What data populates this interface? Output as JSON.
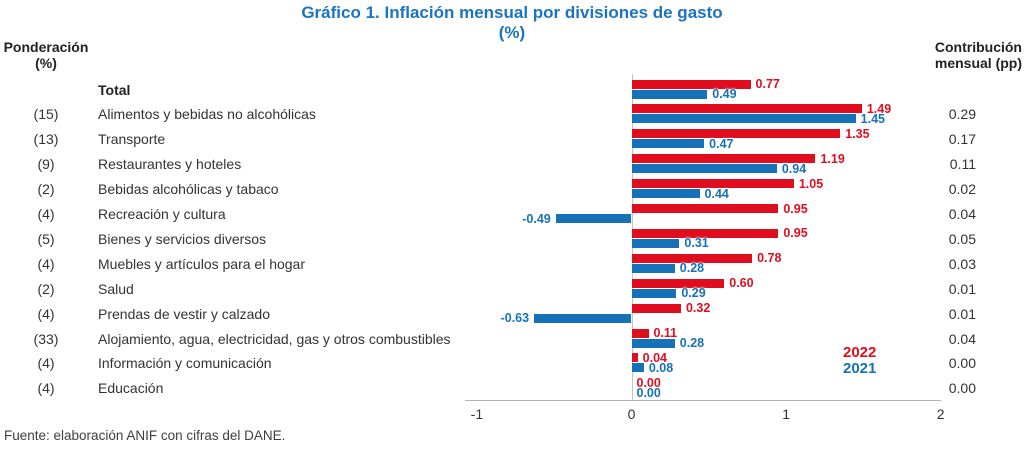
{
  "title": {
    "line1": "Gráfico 1. Inflación mensual por divisiones de gasto",
    "line2": "(%)"
  },
  "left_header": {
    "line1": "Ponderación",
    "line2": "(%)"
  },
  "right_header": {
    "line1": "Contribución",
    "line2": "mensual (pp)"
  },
  "source": "Fuente: elaboración ANIF con cifras del DANE.",
  "legend": [
    {
      "label": "2022",
      "color": "#e00d1f"
    },
    {
      "label": "2021",
      "color": "#1571b8"
    }
  ],
  "colors": {
    "red_2022": "#e00d1f",
    "blue_2021": "#1571b8",
    "title": "#1b74bd",
    "axis_line": "#b3b3b3",
    "zero_line": "#c4c4c4",
    "text": "#333333"
  },
  "chart_data": {
    "type": "bar",
    "orientation": "horizontal",
    "title": "Gráfico 1. Inflación mensual por divisiones de gasto (%)",
    "xlabel": "",
    "ylabel": "",
    "x_ticks": [
      -1,
      0,
      1,
      2
    ],
    "xlim": [
      -1.1,
      2.0
    ],
    "grid": false,
    "legend_position": "right-middle",
    "emphasized_category": "Total",
    "categories": [
      "Total",
      "Alimentos y bebidas no alcohólicas",
      "Transporte",
      "Restaurantes y hoteles",
      "Bebidas alcohólicas y tabaco",
      "Recreación y cultura",
      "Bienes y servicios diversos",
      "Muebles y artículos para el hogar",
      "Salud",
      "Prendas de vestir y calzado",
      "Alojamiento, agua, electricidad, gas y otros combustibles",
      "Información y comunicación",
      "Educación"
    ],
    "ponderacion_pct": [
      null,
      15,
      13,
      9,
      2,
      4,
      5,
      4,
      2,
      4,
      33,
      4,
      4
    ],
    "series": [
      {
        "name": "2022",
        "color": "#e00d1f",
        "values": [
          0.77,
          1.49,
          1.35,
          1.19,
          1.05,
          0.95,
          0.95,
          0.78,
          0.6,
          0.32,
          0.11,
          0.04,
          0.0
        ]
      },
      {
        "name": "2021",
        "color": "#1571b8",
        "values": [
          0.49,
          1.45,
          0.47,
          0.94,
          0.44,
          -0.49,
          0.31,
          0.28,
          0.29,
          -0.63,
          0.28,
          0.08,
          0.0
        ]
      }
    ],
    "contribucion_mensual_pp": [
      null,
      0.29,
      0.17,
      0.11,
      0.02,
      0.04,
      0.05,
      0.03,
      0.01,
      0.01,
      0.04,
      0.0,
      0.0
    ]
  }
}
